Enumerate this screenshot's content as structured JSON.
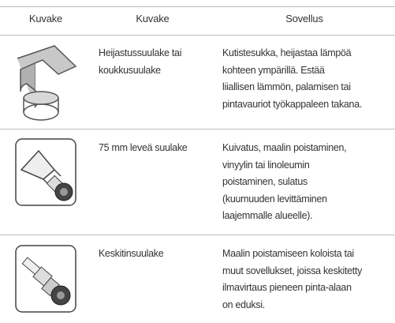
{
  "table": {
    "header": [
      "Kuvake",
      "Kuvake",
      "Sovellus"
    ],
    "rows": [
      {
        "name": [
          "Heijastussuulake tai",
          "koukkusuulake"
        ],
        "application": [
          "Kutistesukka, heijastaa lämpöä",
          "kohteen ympärillä. Estää",
          "liiallisen lämmön, palamisen tai",
          "pintavauriot työkappaleen takana."
        ]
      },
      {
        "name": [
          "75 mm leveä suulake"
        ],
        "application": [
          "Kuivatus, maalin poistaminen,",
          "vinyylin tai linoleumin",
          "poistaminen, sulatus",
          "(kuumuuden levittäminen",
          "laajemmalle alueelle)."
        ]
      },
      {
        "name": [
          "Keskitinsuulake"
        ],
        "application": [
          "Maalin poistamiseen koloista tai",
          "muut sovellukset, joissa keskitetty",
          "ilmavirtaus pieneen pinta-alaan",
          "on eduksi."
        ]
      }
    ]
  }
}
